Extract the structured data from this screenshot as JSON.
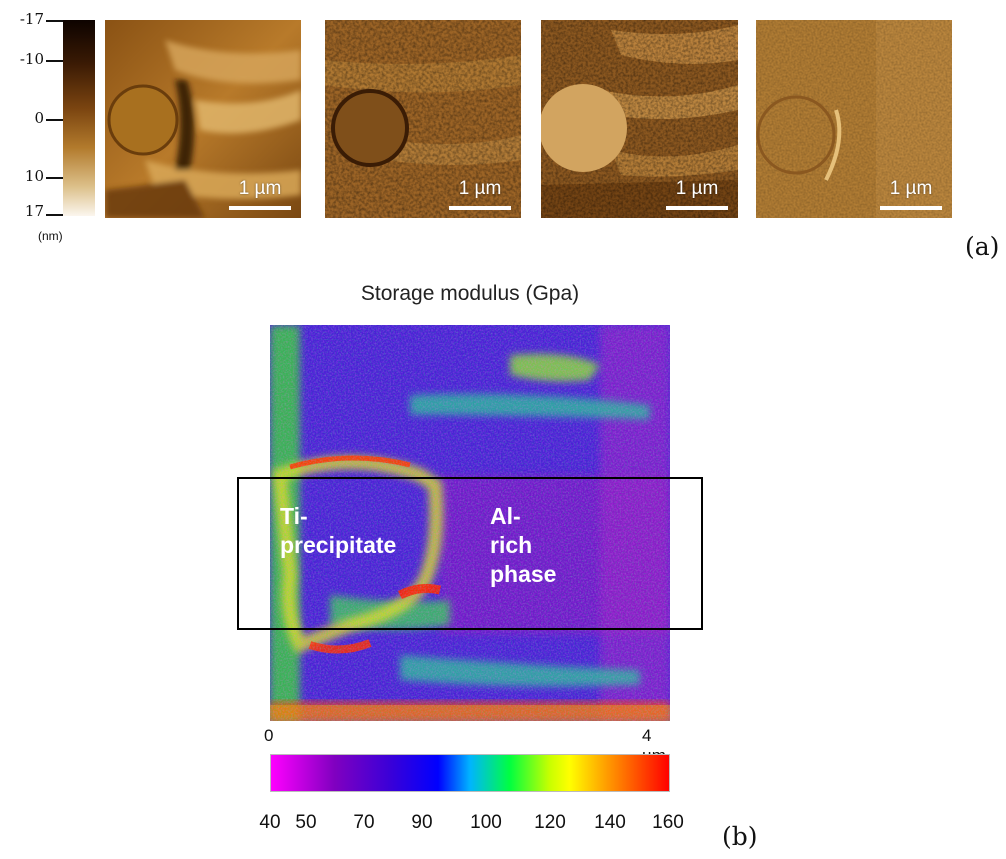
{
  "figure": {
    "panel_a": {
      "label": "(a)",
      "colorbar": {
        "ticks": [
          "-17",
          "-10",
          "0",
          "10",
          "17"
        ],
        "unit": "(nm)"
      },
      "images": [
        {
          "scalebar_label": "1 µm"
        },
        {
          "scalebar_label": "1 µm"
        },
        {
          "scalebar_label": "1 µm"
        },
        {
          "scalebar_label": "1 µm"
        }
      ]
    },
    "panel_b": {
      "label": "(b)",
      "title": "Storage modulus (Gpa)",
      "regions": [
        "Ti-\nprecipitate",
        "Al-rich\nphase"
      ],
      "axis": {
        "start": "0",
        "end": "4 µm"
      },
      "colorbar": {
        "ticks": [
          "40",
          "50",
          "70",
          "90",
          "100",
          "120",
          "140",
          "160"
        ]
      }
    }
  },
  "colors": {
    "afm_dark": "#6b3c0f",
    "afm_light": "#c9944a",
    "modulus_low": "#ff00ff",
    "modulus_high": "#ff0000"
  }
}
